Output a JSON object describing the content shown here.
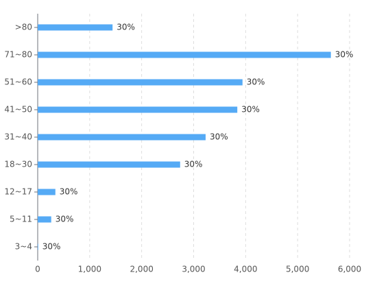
{
  "chart_data": {
    "type": "bar",
    "orientation": "horizontal",
    "categories": [
      ">80",
      "71~80",
      "51~60",
      "41~50",
      "31~40",
      "18~30",
      "12~17",
      "5~11",
      "3~4"
    ],
    "values": [
      1440,
      5640,
      3940,
      3840,
      3230,
      2740,
      340,
      260,
      10
    ],
    "bar_labels": [
      "30%",
      "30%",
      "30%",
      "30%",
      "30%",
      "30%",
      "30%",
      "30%",
      "30%"
    ],
    "color": "#55aaf5",
    "xlim": [
      0,
      6000
    ],
    "xticks": [
      0,
      {
        "value": 1000,
        "label": "1,000"
      },
      {
        "value": 2000,
        "label": "2,000"
      },
      {
        "value": 3000,
        "label": "3,000"
      },
      {
        "value": 4000,
        "label": "4,000"
      },
      {
        "value": 5000,
        "label": "5,000"
      },
      {
        "value": 6000,
        "label": "6,000"
      }
    ],
    "grid": true
  }
}
